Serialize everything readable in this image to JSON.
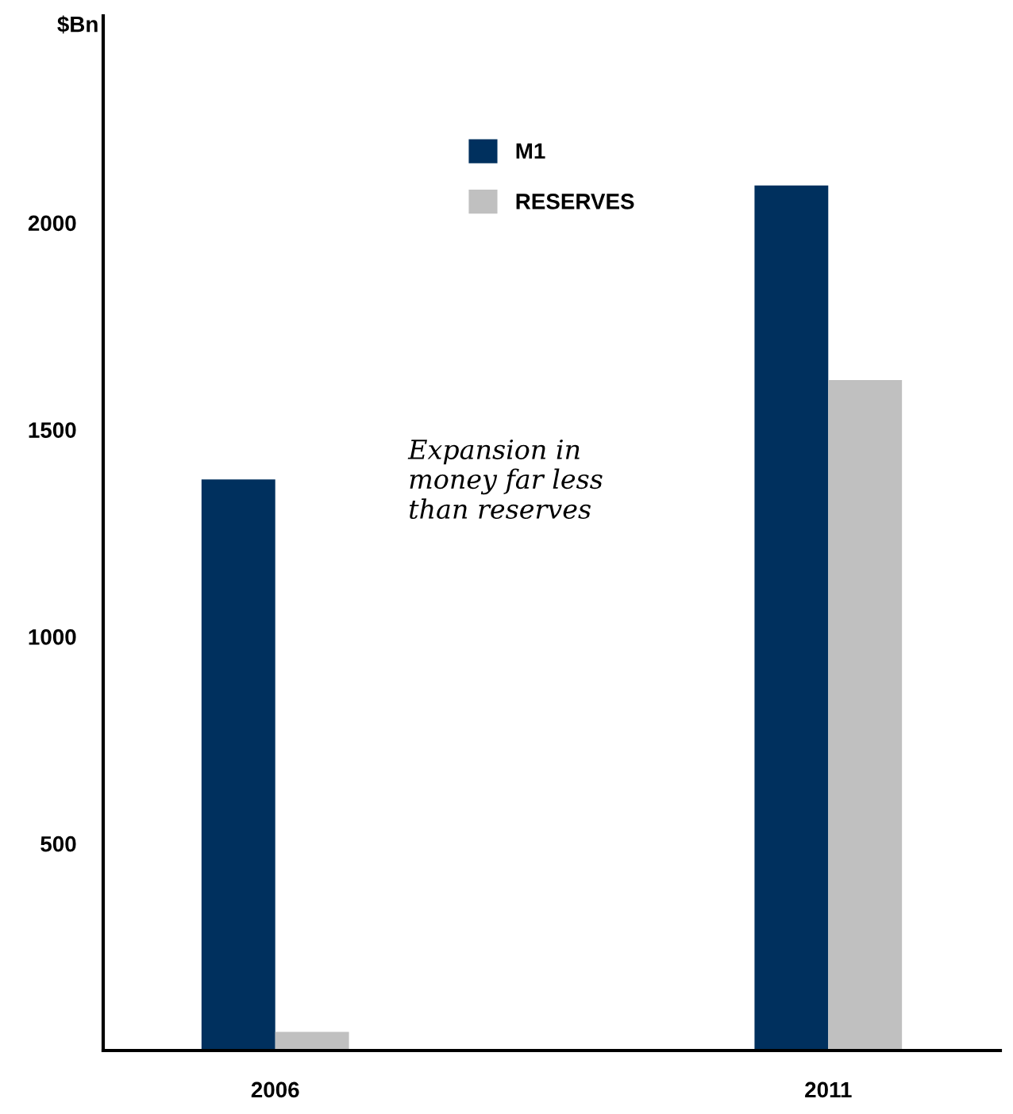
{
  "chart_data": {
    "type": "bar",
    "ylabel": "$Bn",
    "categories": [
      "2006",
      "2011"
    ],
    "series": [
      {
        "name": "M1",
        "color": "#00305e",
        "values": [
          1380,
          2090
        ]
      },
      {
        "name": "RESERVES",
        "color": "#c0c0c0",
        "values": [
          45,
          1620
        ]
      }
    ],
    "ylim": [
      0,
      2500
    ],
    "yticks": [
      500,
      1000,
      1500,
      2000
    ],
    "grid": false,
    "legend": "top",
    "annotations": [
      "Expansion in\nmoney far less\nthan reserves"
    ]
  }
}
